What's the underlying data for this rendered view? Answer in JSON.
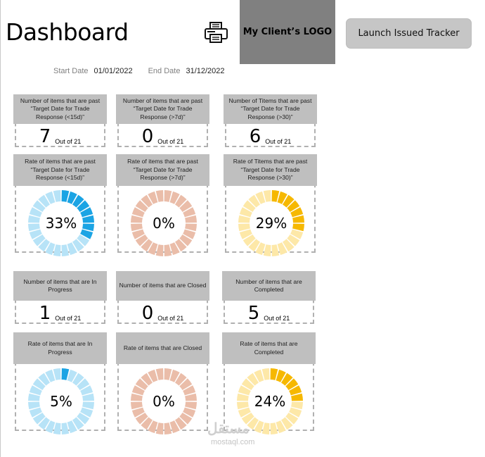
{
  "header": {
    "title": "Dashboard",
    "logo_text": "My Client’s LOGO",
    "launch_button": "Launch Issued Tracker"
  },
  "dates": {
    "start_label": "Start Date",
    "start_value": "01/01/2022",
    "end_label": "End Date",
    "end_value": "31/12/2022"
  },
  "colors": {
    "blue_active": "#1ba4e4",
    "blue_inactive": "#b7e3f7",
    "salmon_active": "#e0a88e",
    "salmon_inactive": "#eabda9",
    "yellow_active": "#f6b800",
    "yellow_inactive": "#fde8a8"
  },
  "cards": {
    "c1": {
      "header": "Number of items that are past “Target Date for Trade Response (<15d)”",
      "value": "7",
      "of": "Out of 21"
    },
    "c2": {
      "header": "Number of items that are past “Target Date for Trade Response (>7d)”",
      "value": "0",
      "of": "Out of 21"
    },
    "c3": {
      "header": "Number of Titems that are past “Target Date for Trade Response (>30)”",
      "value": "6",
      "of": "Out of 21"
    },
    "d1": {
      "header": "Rate of items that are past “Target Date for Trade Response (<15d)”",
      "label": "33%",
      "value": 0.33,
      "color": "blue"
    },
    "d2": {
      "header": "Rate of items that are past “Target Date for Trade Response (>7d)”",
      "label": "0%",
      "value": 0.0,
      "color": "salmon"
    },
    "d3": {
      "header": "Rate of Titems that are past “Target Date for Trade Response (>30)”",
      "label": "29%",
      "value": 0.29,
      "color": "yellow"
    },
    "c4": {
      "header": "Number of items that are In Progress",
      "value": "1",
      "of": "Out of 21"
    },
    "c5": {
      "header": "Number of items that are Closed",
      "value": "0",
      "of": "Out of 21"
    },
    "c6": {
      "header": "Number of items that are Completed",
      "value": "5",
      "of": "Out of 21"
    },
    "d4": {
      "header": "Rate of items that are In Progress",
      "label": "5%",
      "value": 0.05,
      "color": "blue"
    },
    "d5": {
      "header": "Rate of items that are Closed",
      "label": "0%",
      "value": 0.0,
      "color": "salmon"
    },
    "d6": {
      "header": "Rate of items that are Completed",
      "label": "24%",
      "value": 0.24,
      "color": "yellow"
    }
  },
  "watermark": {
    "text": "مستقل",
    "sub": "mostaql.com"
  }
}
